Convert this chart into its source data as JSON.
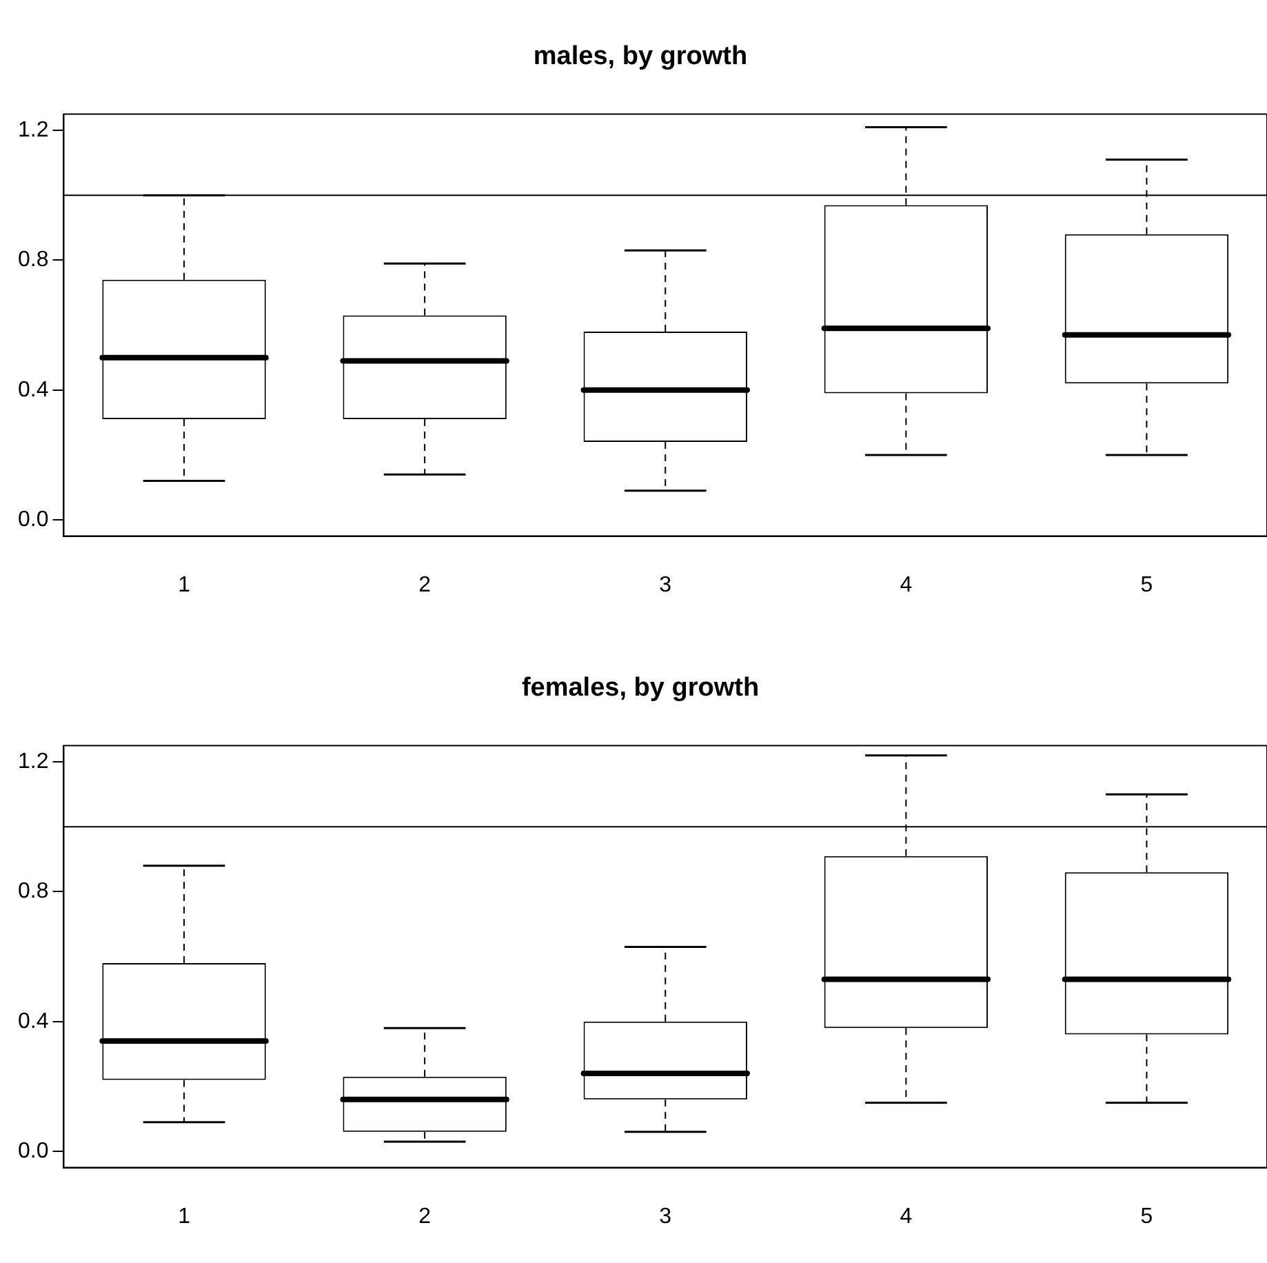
{
  "chart_data": [
    {
      "type": "box",
      "title": "males, by growth",
      "categories": [
        "1",
        "2",
        "3",
        "4",
        "5"
      ],
      "boxes": [
        {
          "low": 0.12,
          "q1": 0.31,
          "median": 0.5,
          "q3": 0.74,
          "high": 1.0
        },
        {
          "low": 0.14,
          "q1": 0.31,
          "median": 0.49,
          "q3": 0.63,
          "high": 0.79
        },
        {
          "low": 0.09,
          "q1": 0.24,
          "median": 0.4,
          "q3": 0.58,
          "high": 0.83
        },
        {
          "low": 0.2,
          "q1": 0.39,
          "median": 0.59,
          "q3": 0.97,
          "high": 1.21
        },
        {
          "low": 0.2,
          "q1": 0.42,
          "median": 0.57,
          "q3": 0.88,
          "high": 1.11
        }
      ],
      "ylim": [
        -0.05,
        1.25
      ],
      "yticks": [
        {
          "value": 0,
          "label": "0.0"
        },
        0.4,
        0.8,
        1.2
      ],
      "ref_lines": [
        {
          "axis": "y",
          "value": 1
        }
      ]
    },
    {
      "type": "box",
      "title": "females, by growth",
      "categories": [
        "1",
        "2",
        "3",
        "4",
        "5"
      ],
      "boxes": [
        {
          "low": 0.09,
          "q1": 0.22,
          "median": 0.34,
          "q3": 0.58,
          "high": 0.88
        },
        {
          "low": 0.03,
          "q1": 0.06,
          "median": 0.16,
          "q3": 0.23,
          "high": 0.38
        },
        {
          "low": 0.06,
          "q1": 0.16,
          "median": 0.24,
          "q3": 0.4,
          "high": 0.63
        },
        {
          "low": 0.15,
          "q1": 0.38,
          "median": 0.53,
          "q3": 0.91,
          "high": 1.22
        },
        {
          "low": 0.15,
          "q1": 0.36,
          "median": 0.53,
          "q3": 0.86,
          "high": 1.1
        }
      ],
      "ylim": [
        -0.05,
        1.25
      ],
      "yticks": [
        {
          "value": 0,
          "label": "0.0"
        },
        0.4,
        0.8,
        1.2
      ],
      "ref_lines": [
        {
          "axis": "y",
          "value": 1
        }
      ]
    }
  ]
}
